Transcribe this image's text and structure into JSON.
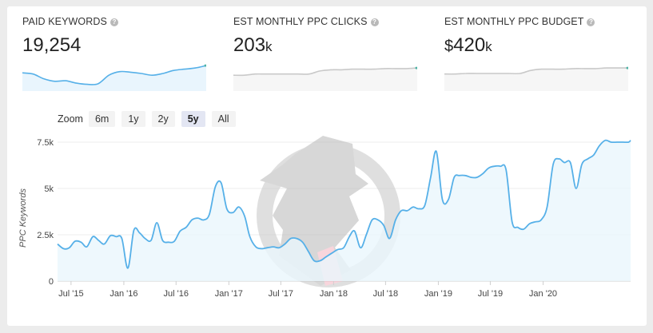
{
  "metrics": [
    {
      "label": "PAID KEYWORDS",
      "prefix": "",
      "value": "19,254",
      "unit": "",
      "spark_color": "#56b0e8",
      "spark_fill": "#e9f5fd",
      "spark": [
        5,
        4.8,
        4,
        3.6,
        3.7,
        3.3,
        3.1,
        3.2,
        4.6,
        5.2,
        5.1,
        4.9,
        4.6,
        4.9,
        5.4,
        5.6,
        5.8,
        6.2
      ]
    },
    {
      "label": "EST MONTHLY PPC CLICKS",
      "prefix": "",
      "value": "203",
      "unit": "k",
      "spark_color": "#c9c9c9",
      "spark_fill": "#f6f6f6",
      "spark": [
        4.6,
        4.6,
        4.8,
        4.8,
        4.8,
        4.8,
        4.8,
        4.8,
        5.3,
        5.5,
        5.5,
        5.6,
        5.6,
        5.6,
        5.7,
        5.7,
        5.7,
        5.8
      ]
    },
    {
      "label": "EST MONTHLY PPC BUDGET",
      "prefix": "$",
      "value": "420",
      "unit": "k",
      "spark_color": "#c9c9c9",
      "spark_fill": "#f6f6f6",
      "spark": [
        4.8,
        4.8,
        4.9,
        4.9,
        4.9,
        4.9,
        4.9,
        4.9,
        5.4,
        5.6,
        5.6,
        5.6,
        5.7,
        5.7,
        5.7,
        5.8,
        5.8,
        5.8
      ]
    }
  ],
  "zoom": {
    "label": "Zoom",
    "options": [
      "6m",
      "1y",
      "2y",
      "5y",
      "All"
    ],
    "active": "5y"
  },
  "chart_data": {
    "type": "area",
    "ylabel": "PPC Keywords",
    "xlabel": "",
    "ylim": [
      0,
      7500
    ],
    "yticks": [
      0,
      2500,
      5000,
      7500
    ],
    "ytick_labels": [
      "0",
      "2.5k",
      "5k",
      "7.5k"
    ],
    "xlim": [
      "2015-05-15",
      "2020-11-01"
    ],
    "xticks": [
      "2015-07-01",
      "2016-01-01",
      "2016-07-01",
      "2017-01-01",
      "2017-07-01",
      "2018-01-01",
      "2018-07-01",
      "2019-01-01",
      "2019-07-01",
      "2020-01-01"
    ],
    "xtick_labels": [
      "Jul '15",
      "Jan '16",
      "Jul '16",
      "Jan '17",
      "Jul '17",
      "Jan '18",
      "Jul '18",
      "Jan '19",
      "Jul '19",
      "Jan '20"
    ],
    "line_color": "#56b0e8",
    "fill_color": "#eaf6fd",
    "grid": true,
    "series": [
      {
        "name": "",
        "x": [
          "2015-05-15",
          "2015-06-05",
          "2015-06-25",
          "2015-07-15",
          "2015-08-05",
          "2015-08-25",
          "2015-09-15",
          "2015-10-05",
          "2015-10-25",
          "2015-11-15",
          "2015-12-05",
          "2015-12-25",
          "2016-01-15",
          "2016-02-05",
          "2016-02-25",
          "2016-03-15",
          "2016-04-05",
          "2016-04-25",
          "2016-05-15",
          "2016-06-05",
          "2016-06-25",
          "2016-07-15",
          "2016-08-05",
          "2016-08-25",
          "2016-09-15",
          "2016-10-05",
          "2016-10-25",
          "2016-11-15",
          "2016-12-05",
          "2016-12-25",
          "2017-01-15",
          "2017-02-05",
          "2017-02-25",
          "2017-03-15",
          "2017-04-05",
          "2017-04-25",
          "2017-05-15",
          "2017-06-05",
          "2017-06-25",
          "2017-07-15",
          "2017-08-05",
          "2017-08-25",
          "2017-09-15",
          "2017-10-05",
          "2017-10-25",
          "2017-11-15",
          "2017-12-05",
          "2017-12-25",
          "2018-01-15",
          "2018-02-05",
          "2018-02-25",
          "2018-03-15",
          "2018-04-05",
          "2018-04-25",
          "2018-05-15",
          "2018-06-05",
          "2018-06-25",
          "2018-07-15",
          "2018-08-05",
          "2018-08-25",
          "2018-09-15",
          "2018-10-05",
          "2018-10-25",
          "2018-11-15",
          "2018-12-05",
          "2018-12-25",
          "2019-01-15",
          "2019-02-05",
          "2019-02-25",
          "2019-03-15",
          "2019-04-05",
          "2019-04-25",
          "2019-05-15",
          "2019-06-05",
          "2019-06-25",
          "2019-07-15",
          "2019-08-05",
          "2019-08-25",
          "2019-09-15",
          "2019-10-05",
          "2019-10-25",
          "2019-11-15",
          "2019-12-05",
          "2019-12-25",
          "2020-01-15",
          "2020-02-05",
          "2020-02-25",
          "2020-03-15",
          "2020-04-05",
          "2020-04-25",
          "2020-05-15",
          "2020-06-05",
          "2020-06-25",
          "2020-07-15",
          "2020-08-05",
          "2020-08-25",
          "2020-09-15",
          "2020-10-05",
          "2020-10-25",
          "2020-11-01"
        ],
        "values": [
          2000,
          1750,
          1800,
          2150,
          2100,
          1850,
          2400,
          2200,
          2000,
          2450,
          2400,
          2300,
          700,
          2750,
          2600,
          2300,
          2200,
          3150,
          2200,
          2100,
          2150,
          2700,
          2900,
          3300,
          3400,
          3300,
          3600,
          5100,
          5300,
          3900,
          3700,
          4000,
          3500,
          2400,
          1850,
          1750,
          1800,
          1850,
          1800,
          2000,
          2300,
          2300,
          2100,
          1600,
          1100,
          1100,
          1300,
          1500,
          1700,
          1800,
          2400,
          2700,
          1800,
          2500,
          3300,
          3300,
          3000,
          2300,
          3300,
          3800,
          3800,
          4000,
          3900,
          4100,
          5600,
          7000,
          4400,
          4400,
          5600,
          5700,
          5700,
          5600,
          5600,
          5800,
          6100,
          6200,
          6200,
          6000,
          3200,
          2900,
          2800,
          3100,
          3200,
          3300,
          4000,
          6300,
          6600,
          6400,
          6400,
          5000,
          6300,
          6600,
          6800,
          7300,
          7600,
          7500,
          7500,
          7500,
          7500,
          7600
        ]
      }
    ]
  }
}
